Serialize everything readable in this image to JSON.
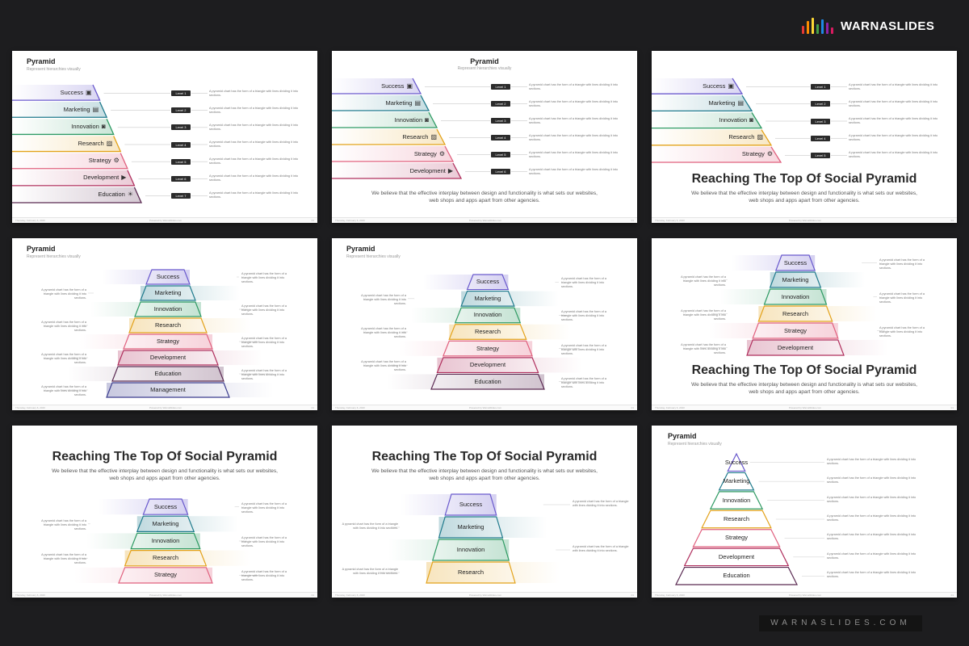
{
  "brand": {
    "name": "WARNASLIDES",
    "logo_icon": "colored-bars-logo",
    "bar_colors": [
      "#e53935",
      "#fb8c00",
      "#fdd835",
      "#43a047",
      "#1e88e5",
      "#8e24aa",
      "#d81b60"
    ],
    "website": "WARNASLIDES.COM"
  },
  "colors": {
    "success": "#6a5acd",
    "marketing": "#1f7a8c",
    "innovation": "#2e9a63",
    "research": "#e3a21a",
    "strategy": "#e0607e",
    "development": "#b0305e",
    "education": "#5a2a52",
    "management": "#3d3f8f"
  },
  "common": {
    "slide_title": "Pyramid",
    "slide_subtitle": "Represent hierarchies visually",
    "big_title": "Reaching The Top Of Social Pyramid",
    "big_body": "We believe that the effective interplay between design and functionality is what sets our websites, web shops and apps apart from other agencies.",
    "desc_long": "A pyramid chart has the form of a triangle with lines dividing it into sections.",
    "desc_short": "A pyramid chart has the form of a triangle with lines dividing it into sections.",
    "footer_left": "Thursday, February 6, 2020",
    "footer_mid": "Powered by WarnaSlides.com",
    "footer_right": "01"
  },
  "slides": [
    {
      "id": "slide-1",
      "levels": [
        "Success",
        "Marketing",
        "Innovation",
        "Research",
        "Strategy",
        "Development",
        "Education"
      ],
      "badges": [
        "Level 1",
        "Level 2",
        "Level 3",
        "Level 4",
        "Level 5",
        "Level 6",
        "Level 7"
      ],
      "icons": [
        "comment-icon",
        "megaphone-icon",
        "binoculars-icon",
        "image-icon",
        "gear-icon",
        "bullhorn-icon",
        "lightbulb-icon"
      ]
    },
    {
      "id": "slide-2",
      "levels": [
        "Success",
        "Marketing",
        "Innovation",
        "Research",
        "Strategy",
        "Development"
      ],
      "badges": [
        "Level 1",
        "Level 2",
        "Level 3",
        "Level 4",
        "Level 5",
        "Level 6"
      ],
      "icons": [
        "comment-icon",
        "megaphone-icon",
        "binoculars-icon",
        "image-icon",
        "gear-icon",
        "bullhorn-icon"
      ]
    },
    {
      "id": "slide-3",
      "levels": [
        "Success",
        "Marketing",
        "Innovation",
        "Research",
        "Strategy"
      ],
      "badges": [
        "Level 1",
        "Level 2",
        "Level 3",
        "Level 4",
        "Level 5"
      ],
      "icons": [
        "comment-icon",
        "megaphone-icon",
        "binoculars-icon",
        "image-icon",
        "gear-icon"
      ]
    },
    {
      "id": "slide-4",
      "levels": [
        "Success",
        "Marketing",
        "Innovation",
        "Research",
        "Strategy",
        "Development",
        "Education",
        "Management"
      ]
    },
    {
      "id": "slide-5",
      "levels": [
        "Success",
        "Marketing",
        "Innovation",
        "Research",
        "Strategy",
        "Development",
        "Education"
      ]
    },
    {
      "id": "slide-6",
      "levels": [
        "Success",
        "Marketing",
        "Innovation",
        "Research",
        "Strategy",
        "Development"
      ]
    },
    {
      "id": "slide-7",
      "levels": [
        "Success",
        "Marketing",
        "Innovation",
        "Research",
        "Strategy"
      ]
    },
    {
      "id": "slide-8",
      "levels": [
        "Success",
        "Marketing",
        "Innovation",
        "Research"
      ]
    },
    {
      "id": "slide-9",
      "levels": [
        "Success",
        "Marketing",
        "Innovation",
        "Research",
        "Strategy",
        "Development",
        "Education"
      ]
    }
  ]
}
